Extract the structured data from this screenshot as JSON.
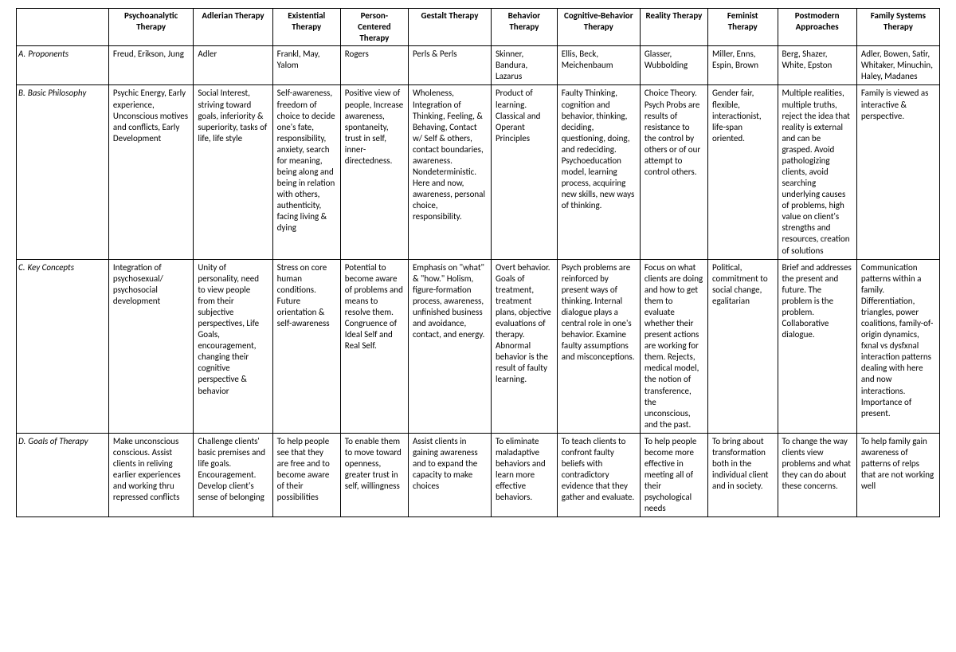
{
  "table": {
    "columns": [
      "Psychoanalytic Therapy",
      "Adlerian Therapy",
      "Existential Therapy",
      "Person-Centered Therapy",
      "Gestalt Therapy",
      "Behavior Therapy",
      "Cognitive-Behavior Therapy",
      "Reality Therapy",
      "Feminist Therapy",
      "Postmodern Approaches",
      "Family Systems Therapy"
    ],
    "rows": [
      {
        "prefix": "A.",
        "label": "Proponents",
        "cells": [
          "Freud, Erikson, Jung",
          "Adler",
          "Frankl, May, Yalom",
          "Rogers",
          "Perls & Perls",
          "Skinner, Bandura, Lazarus",
          "Ellis, Beck, Meichenbaum",
          "Glasser, Wubbolding",
          "Miller, Enns, Espin, Brown",
          "Berg, Shazer, White, Epston",
          "Adler, Bowen, Satir, Whitaker, Minuchin, Haley, Madanes"
        ]
      },
      {
        "prefix": "B.",
        "label": "Basic Philosophy",
        "cells": [
          "Psychic Energy, Early experience, Unconscious motives and conflicts, Early Development",
          "Social Interest, striving toward goals, inferiority & superiority, tasks of life, life style",
          "Self-awareness, freedom of choice to decide one's fate, responsibility, anxiety, search for meaning, being along and being in relation with others, authenticity, facing living & dying",
          "Positive view of people, Increase awareness, spontaneity, trust in self, inner-directedness.",
          "Wholeness, Integration of Thinking, Feeling, & Behaving, Contact w/ Self & others, contact boundaries, awareness. Nondeterministic. Here and now, awareness, personal choice, responsibility.",
          "Product of learning. Classical and Operant Principles",
          "Faulty Thinking, cognition and behavior, thinking, deciding, questioning, doing, and redeciding. Psychoeducation model, learning process, acquiring new skills, new ways of thinking.",
          "Choice Theory. Psych Probs are results of resistance to the control by others or of our attempt to control others.",
          "Gender fair, flexible, interactionist, life-span oriented.",
          "Multiple realities, multiple truths, reject the idea that reality is external and can be grasped. Avoid pathologizing clients, avoid searching underlying causes of problems, high value on client's strengths and resources, creation of solutions",
          "Family is viewed as interactive & perspective."
        ]
      },
      {
        "prefix": "C.",
        "label": "Key Concepts",
        "cells": [
          "Integration of psychosexual/ psychosocial development",
          "Unity of personality, need to view people from their subjective perspectives, Life Goals, encouragement, changing their cognitive perspective & behavior",
          "Stress on core human conditions. Future orientation & self-awareness",
          "Potential to become aware of problems and means to resolve them. Congruence of Ideal Self and Real Self.",
          "Emphasis on \"what\" & \"how.\" Holism, figure-formation process, awareness, unfinished business and avoidance, contact, and energy.",
          "Overt behavior. Goals of treatment, treatment plans, objective evaluations of therapy. Abnormal behavior is the result of faulty learning.",
          "Psych problems are reinforced by present ways of thinking. Internal dialogue plays a central role in one's behavior. Examine faulty assumptions and misconceptions.",
          "Focus on what clients are doing and how to get them to evaluate whether their present actions are working for them. Rejects, medical model, the notion of transference, the unconscious, and the past.",
          "Political, commitment to social change, egalitarian",
          "Brief and addresses the present and future. The problem is the problem. Collaborative dialogue.",
          "Communication patterns within a family. Differentiation, triangles, power coalitions, family-of-origin dynamics, fxnal vs dysfxnal interaction patterns dealing with here and now interactions. Importance of present."
        ]
      },
      {
        "prefix": "D.",
        "label": "Goals of Therapy",
        "cells": [
          "Make unconscious conscious. Assist clients in reliving earlier experiences and working thru repressed conflicts",
          "Challenge clients' basic premises and life goals. Encouragement. Develop client's sense of belonging",
          "To help people see that they are free and to become aware of their possibilities",
          "To enable them to move toward openness, greater trust in self, willingness",
          "Assist clients in gaining awareness and to expand the capacity to make choices",
          "To eliminate maladaptive behaviors and learn more effective behaviors.",
          "To teach clients to confront faulty beliefs with contradictory evidence that they gather and evaluate.",
          "To help people become more effective in meeting all of their psychological needs",
          "To bring about transformation both in the individual client and in society.",
          "To change the way clients view problems and what they can do about these concerns.",
          "To help family gain awareness of patterns of relps that are not working well"
        ]
      }
    ]
  }
}
